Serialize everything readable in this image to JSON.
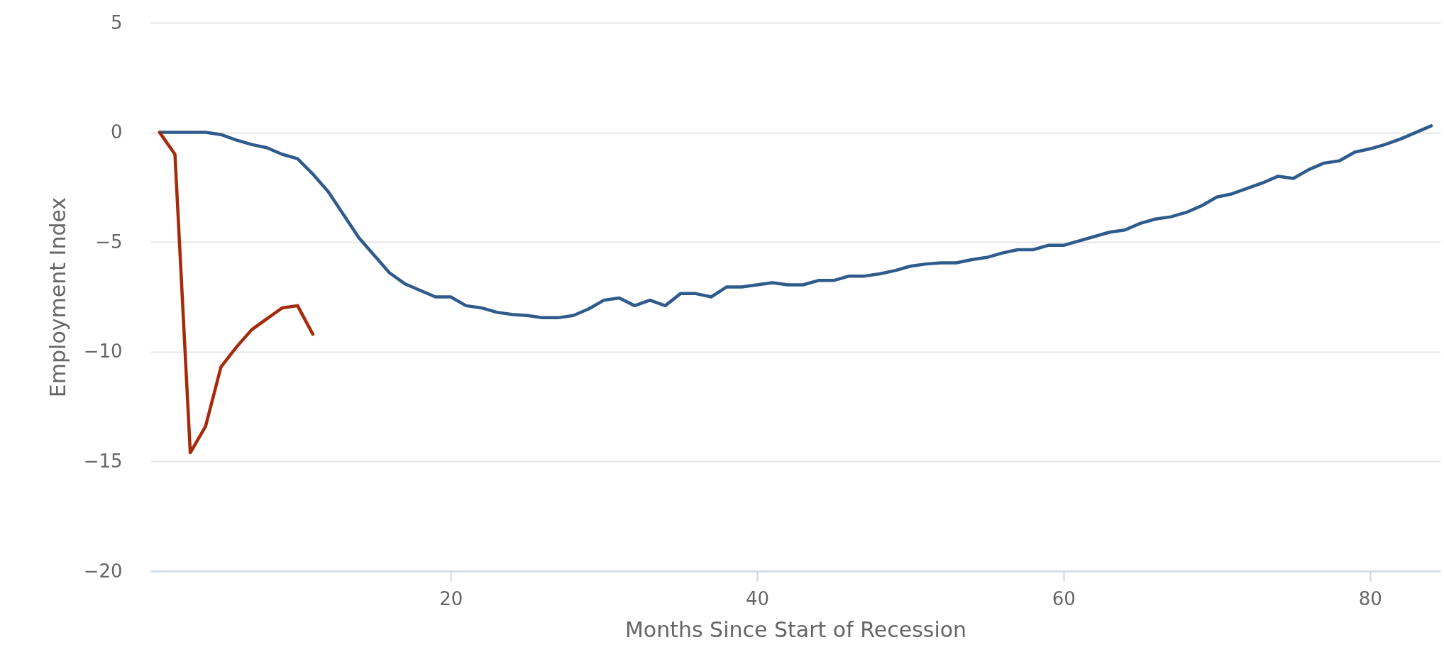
{
  "chart_data": {
    "type": "line",
    "xlabel": "Months Since Start of Recession",
    "ylabel": "Employment Index",
    "xlim": [
      0.4,
      84.6
    ],
    "xticks": [
      20,
      40,
      60,
      80
    ],
    "ylim": [
      -20,
      5
    ],
    "yticks": [
      -20,
      -15,
      -10,
      -5,
      0,
      5
    ],
    "grid": "y",
    "line_style": "solid",
    "series": [
      {
        "color": "#2f5b8c",
        "x": [
          1,
          2,
          3,
          4,
          5,
          6,
          7,
          8,
          9,
          10,
          11,
          12,
          13,
          14,
          15,
          16,
          17,
          18,
          19,
          20,
          21,
          22,
          23,
          24,
          25,
          26,
          27,
          28,
          29,
          30,
          31,
          32,
          33,
          34,
          35,
          36,
          37,
          38,
          39,
          40,
          41,
          42,
          43,
          44,
          45,
          46,
          47,
          48,
          49,
          50,
          51,
          52,
          53,
          54,
          55,
          56,
          57,
          58,
          59,
          60,
          61,
          62,
          63,
          64,
          65,
          66,
          67,
          68,
          69,
          70,
          71,
          72,
          73,
          74,
          75,
          76,
          77,
          78,
          79,
          80,
          81,
          82,
          83,
          84
        ],
        "values": [
          0,
          0,
          0,
          0,
          -0.1,
          -0.35,
          -0.55,
          -0.7,
          -1.0,
          -1.2,
          -1.9,
          -2.7,
          -3.75,
          -4.8,
          -5.6,
          -6.4,
          -6.9,
          -7.2,
          -7.5,
          -7.5,
          -7.9,
          -8.0,
          -8.2,
          -8.3,
          -8.35,
          -8.45,
          -8.45,
          -8.35,
          -8.05,
          -7.65,
          -7.55,
          -7.9,
          -7.65,
          -7.9,
          -7.35,
          -7.35,
          -7.5,
          -7.05,
          -7.05,
          -6.95,
          -6.85,
          -6.95,
          -6.95,
          -6.75,
          -6.75,
          -6.55,
          -6.55,
          -6.45,
          -6.3,
          -6.1,
          -6.0,
          -5.95,
          -5.95,
          -5.8,
          -5.7,
          -5.5,
          -5.35,
          -5.35,
          -5.15,
          -5.15,
          -4.95,
          -4.75,
          -4.55,
          -4.45,
          -4.15,
          -3.95,
          -3.85,
          -3.65,
          -3.35,
          -2.95,
          -2.8,
          -2.55,
          -2.3,
          -2.0,
          -2.1,
          -1.7,
          -1.4,
          -1.3,
          -0.9,
          -0.75,
          -0.55,
          -0.3,
          0,
          0.3
        ]
      },
      {
        "color": "#a52a0a",
        "x": [
          1,
          2,
          3,
          4,
          5,
          6,
          7,
          8,
          9,
          10,
          11
        ],
        "values": [
          0,
          -1.0,
          -14.6,
          -13.4,
          -10.7,
          -9.8,
          -9.0,
          -8.5,
          -8.0,
          -7.9,
          -9.2
        ]
      }
    ]
  }
}
